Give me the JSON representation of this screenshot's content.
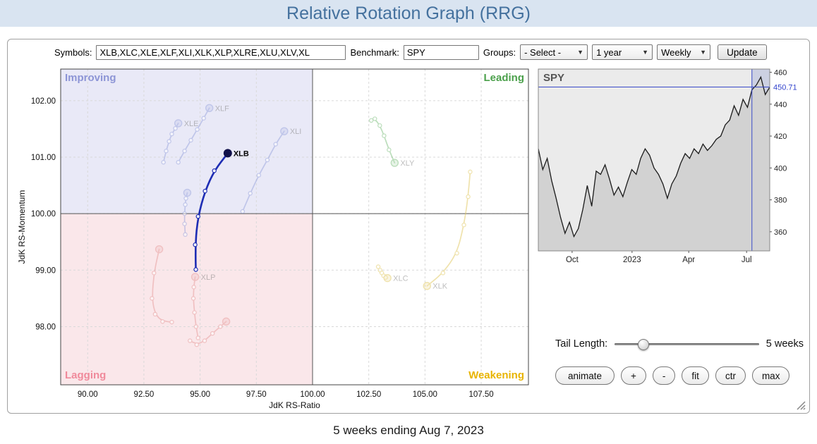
{
  "header": {
    "title": "Relative Rotation Graph (RRG)"
  },
  "toolbar": {
    "symbols_label": "Symbols:",
    "symbols_value": "XLB,XLC,XLE,XLF,XLI,XLK,XLP,XLRE,XLU,XLV,XL",
    "benchmark_label": "Benchmark:",
    "benchmark_value": "SPY",
    "groups_label": "Groups:",
    "groups_value": "- Select -",
    "period_value": "1 year",
    "frequency_value": "Weekly",
    "update_label": "Update"
  },
  "icons": {
    "select_arrow": "▼",
    "resize_grip": "diagonal-lines"
  },
  "controls": {
    "tail_length_label": "Tail Length:",
    "tail_length_value": "5 weeks",
    "buttons": [
      "animate",
      "+",
      "-",
      "fit",
      "ctr",
      "max"
    ]
  },
  "footer": {
    "caption": "5 weeks ending Aug 7, 2023"
  },
  "chart_data": {
    "rrg": {
      "type": "scatter",
      "xlabel": "JdK RS-Ratio",
      "ylabel": "JdK RS-Momentum",
      "xlim": [
        88.8,
        109.6
      ],
      "ylim": [
        96.97,
        102.56
      ],
      "xticks": [
        90.0,
        92.5,
        95.0,
        97.5,
        100.0,
        102.5,
        105.0,
        107.5
      ],
      "yticks": [
        98.0,
        99.0,
        100.0,
        101.0,
        102.0
      ],
      "center": [
        100,
        100
      ],
      "tail_weeks": 5,
      "quadrants": {
        "improving": {
          "label": "Improving",
          "color": "#8d95d6",
          "bg": "#e9e9f7"
        },
        "leading": {
          "label": "Leading",
          "color": "#4ba04b",
          "bg": "#ffffff"
        },
        "lagging": {
          "label": "Lagging",
          "color": "#f08a9b",
          "bg": "#fae7ea"
        },
        "weakening": {
          "label": "Weakening",
          "color": "#e8b400",
          "bg": "#ffffff"
        }
      },
      "series": [
        {
          "symbol": "XLF",
          "selected": false,
          "labeled": true,
          "color": "#97a3dd",
          "points": [
            [
              94.03,
              100.91
            ],
            [
              94.31,
              101.11
            ],
            [
              94.59,
              101.3
            ],
            [
              94.87,
              101.49
            ],
            [
              95.16,
              101.69
            ],
            [
              95.41,
              101.87
            ]
          ]
        },
        {
          "symbol": "XLE",
          "selected": false,
          "labeled": true,
          "color": "#97a3dd",
          "points": [
            [
              93.37,
              100.91
            ],
            [
              93.49,
              101.11
            ],
            [
              93.62,
              101.28
            ],
            [
              93.74,
              101.41
            ],
            [
              93.9,
              101.51
            ],
            [
              94.03,
              101.6
            ]
          ]
        },
        {
          "symbol": "XLI",
          "selected": false,
          "labeled": true,
          "color": "#97a3dd",
          "points": [
            [
              96.89,
              100.04
            ],
            [
              97.23,
              100.36
            ],
            [
              97.61,
              100.68
            ],
            [
              97.99,
              100.95
            ],
            [
              98.36,
              101.23
            ],
            [
              98.74,
              101.46
            ]
          ]
        },
        {
          "symbol": "XLV",
          "selected": false,
          "labeled": false,
          "color": "#97a3dd",
          "points": [
            [
              94.34,
              99.63
            ],
            [
              94.31,
              99.82
            ],
            [
              94.31,
              100.0
            ],
            [
              94.34,
              100.16
            ],
            [
              94.37,
              100.27
            ],
            [
              94.43,
              100.37
            ]
          ]
        },
        {
          "symbol": "XLU",
          "selected": false,
          "labeled": false,
          "color": "#e79a9a",
          "points": [
            [
              93.74,
              98.08
            ],
            [
              93.33,
              98.09
            ],
            [
              93.0,
              98.22
            ],
            [
              92.86,
              98.5
            ],
            [
              92.95,
              98.95
            ],
            [
              93.18,
              99.37
            ]
          ]
        },
        {
          "symbol": "XLP",
          "selected": false,
          "labeled": true,
          "color": "#e79a9a",
          "points": [
            [
              94.91,
              97.8
            ],
            [
              94.82,
              98.0
            ],
            [
              94.75,
              98.25
            ],
            [
              94.7,
              98.5
            ],
            [
              94.72,
              98.7
            ],
            [
              94.78,
              98.88
            ]
          ]
        },
        {
          "symbol": "XLRE",
          "selected": false,
          "labeled": false,
          "color": "#e79a9a",
          "points": [
            [
              94.55,
              97.75
            ],
            [
              94.85,
              97.68
            ],
            [
              95.2,
              97.75
            ],
            [
              95.55,
              97.88
            ],
            [
              95.9,
              98.0
            ],
            [
              96.16,
              98.09
            ]
          ]
        },
        {
          "symbol": "XLC",
          "selected": false,
          "labeled": true,
          "color": "#e0c75c",
          "points": [
            [
              102.92,
              99.06
            ],
            [
              103.0,
              99.0
            ],
            [
              103.08,
              98.95
            ],
            [
              103.16,
              98.9
            ],
            [
              103.25,
              98.87
            ],
            [
              103.33,
              98.86
            ]
          ]
        },
        {
          "symbol": "XLK",
          "selected": false,
          "labeled": true,
          "color": "#e0c75c",
          "points": [
            [
              107.01,
              100.74
            ],
            [
              106.92,
              100.3
            ],
            [
              106.73,
              99.8
            ],
            [
              106.42,
              99.3
            ],
            [
              105.8,
              98.95
            ],
            [
              105.09,
              98.72
            ]
          ]
        },
        {
          "symbol": "XLY",
          "selected": false,
          "labeled": true,
          "color": "#79bd79",
          "points": [
            [
              102.61,
              101.65
            ],
            [
              102.77,
              101.68
            ],
            [
              102.99,
              101.56
            ],
            [
              103.18,
              101.38
            ],
            [
              103.4,
              101.13
            ],
            [
              103.65,
              100.9
            ]
          ]
        },
        {
          "symbol": "XLB",
          "selected": true,
          "labeled": true,
          "color": "#1e2db4",
          "points": [
            [
              94.81,
              99.01
            ],
            [
              94.78,
              99.45
            ],
            [
              94.91,
              99.95
            ],
            [
              95.22,
              100.4
            ],
            [
              95.63,
              100.76
            ],
            [
              96.23,
              101.07
            ]
          ]
        }
      ]
    },
    "spy": {
      "type": "area",
      "title": "SPY",
      "last_price": 450.71,
      "last_price_label": "450.71",
      "ylim": [
        348,
        462
      ],
      "yticks": [
        360,
        380,
        400,
        420,
        440,
        460
      ],
      "x_axis_labels": [
        {
          "text": "Oct",
          "pos": 0.146
        },
        {
          "text": "2023",
          "pos": 0.405
        },
        {
          "text": "Apr",
          "pos": 0.65
        },
        {
          "text": "Jul",
          "pos": 0.9
        }
      ],
      "highlight_weeks": 5,
      "values": [
        412,
        399,
        406,
        392,
        381,
        369,
        359,
        366,
        357,
        362,
        374,
        389,
        376,
        398,
        396,
        402,
        393,
        383,
        388,
        382,
        391,
        399,
        396,
        406,
        412,
        408,
        400,
        396,
        390,
        381,
        390,
        395,
        403,
        409,
        406,
        412,
        409,
        415,
        411,
        414,
        418,
        420,
        427,
        430,
        439,
        433,
        443,
        438,
        449,
        452,
        457,
        446,
        450.71
      ]
    }
  }
}
